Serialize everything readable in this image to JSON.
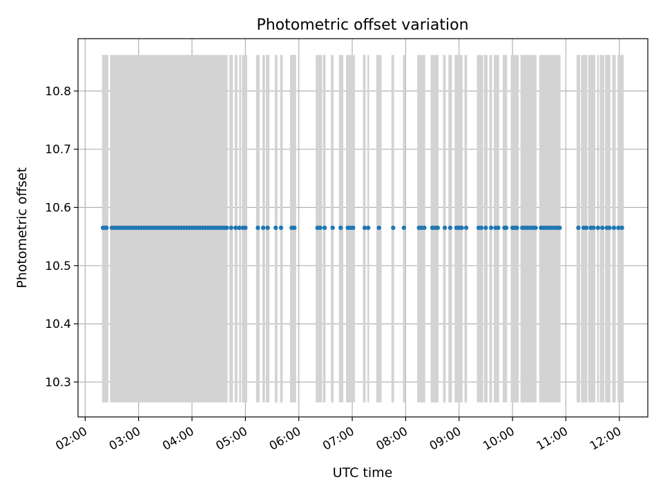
{
  "chart_data": {
    "type": "scatter",
    "title": "Photometric offset variation",
    "xlabel": "UTC time",
    "ylabel": "Photometric offset",
    "xlim": [
      "01:52",
      "12:32"
    ],
    "ylim": [
      10.24,
      10.89
    ],
    "x_ticks": [
      "02:00",
      "03:00",
      "04:00",
      "05:00",
      "06:00",
      "07:00",
      "08:00",
      "09:00",
      "10:00",
      "11:00",
      "12:00"
    ],
    "y_ticks": [
      10.3,
      10.4,
      10.5,
      10.6,
      10.7,
      10.8
    ],
    "grid": true,
    "marker_color": "#1f77b4",
    "band_color": "#d3d3d3",
    "band_range": [
      10.265,
      10.862
    ],
    "value": 10.565,
    "bands": [
      [
        "02:19",
        "02:26"
      ],
      [
        "02:28",
        "04:40"
      ],
      [
        "04:42",
        "04:46"
      ],
      [
        "04:48",
        "04:51"
      ],
      [
        "04:53",
        "04:55"
      ],
      [
        "04:56",
        "05:02"
      ],
      [
        "05:12",
        "05:16"
      ],
      [
        "05:19",
        "05:22"
      ],
      [
        "05:23",
        "05:27"
      ],
      [
        "05:33",
        "05:36"
      ],
      [
        "05:39",
        "05:42"
      ],
      [
        "05:50",
        "05:57"
      ],
      [
        "06:19",
        "06:26"
      ],
      [
        "06:27",
        "06:30"
      ],
      [
        "06:36",
        "06:39"
      ],
      [
        "06:45",
        "06:50"
      ],
      [
        "06:53",
        "07:03"
      ],
      [
        "07:12",
        "07:15"
      ],
      [
        "07:17",
        "07:19"
      ],
      [
        "07:27",
        "07:33"
      ],
      [
        "07:44",
        "07:47"
      ],
      [
        "07:57",
        "08:00"
      ],
      [
        "08:13",
        "08:22"
      ],
      [
        "08:28",
        "08:37"
      ],
      [
        "08:42",
        "08:45"
      ],
      [
        "08:48",
        "08:52"
      ],
      [
        "08:55",
        "09:04"
      ],
      [
        "09:06",
        "09:09"
      ],
      [
        "09:20",
        "09:27"
      ],
      [
        "09:28",
        "09:32"
      ],
      [
        "09:34",
        "09:37"
      ],
      [
        "09:39",
        "09:45"
      ],
      [
        "09:49",
        "09:54"
      ],
      [
        "09:58",
        "10:07"
      ],
      [
        "10:09",
        "10:27"
      ],
      [
        "10:30",
        "10:54"
      ],
      [
        "11:12",
        "11:16"
      ],
      [
        "11:17",
        "11:24"
      ],
      [
        "11:25",
        "11:33"
      ],
      [
        "11:35",
        "11:37"
      ],
      [
        "11:38",
        "11:43"
      ],
      [
        "11:44",
        "11:50"
      ],
      [
        "11:52",
        "11:56"
      ],
      [
        "11:58",
        "12:05"
      ]
    ],
    "points": [
      "02:20",
      "02:22",
      "02:24",
      "02:30",
      "02:33",
      "02:36",
      "02:39",
      "02:42",
      "02:45",
      "02:48",
      "02:51",
      "02:54",
      "02:57",
      "03:00",
      "03:03",
      "03:06",
      "03:09",
      "03:12",
      "03:15",
      "03:18",
      "03:21",
      "03:24",
      "03:27",
      "03:30",
      "03:33",
      "03:36",
      "03:39",
      "03:42",
      "03:45",
      "03:48",
      "03:51",
      "03:54",
      "03:57",
      "04:00",
      "04:03",
      "04:06",
      "04:09",
      "04:12",
      "04:15",
      "04:18",
      "04:21",
      "04:24",
      "04:27",
      "04:30",
      "04:33",
      "04:36",
      "04:39",
      "04:44",
      "04:49",
      "04:53",
      "04:57",
      "05:00",
      "05:14",
      "05:20",
      "05:25",
      "05:34",
      "05:40",
      "05:52",
      "05:55",
      "06:21",
      "06:24",
      "06:29",
      "06:38",
      "06:47",
      "06:55",
      "06:58",
      "07:01",
      "07:14",
      "07:18",
      "07:30",
      "07:46",
      "07:58",
      "08:15",
      "08:18",
      "08:21",
      "08:30",
      "08:33",
      "08:36",
      "08:44",
      "08:50",
      "08:57",
      "09:00",
      "09:03",
      "09:08",
      "09:22",
      "09:25",
      "09:30",
      "09:36",
      "09:41",
      "09:44",
      "09:51",
      "09:53",
      "10:00",
      "10:03",
      "10:05",
      "10:11",
      "10:14",
      "10:17",
      "10:20",
      "10:23",
      "10:26",
      "10:32",
      "10:35",
      "10:38",
      "10:41",
      "10:44",
      "10:47",
      "10:50",
      "10:53",
      "11:14",
      "11:20",
      "11:23",
      "11:28",
      "11:31",
      "11:36",
      "11:41",
      "11:46",
      "11:49",
      "11:54",
      "11:59",
      "12:03"
    ]
  }
}
